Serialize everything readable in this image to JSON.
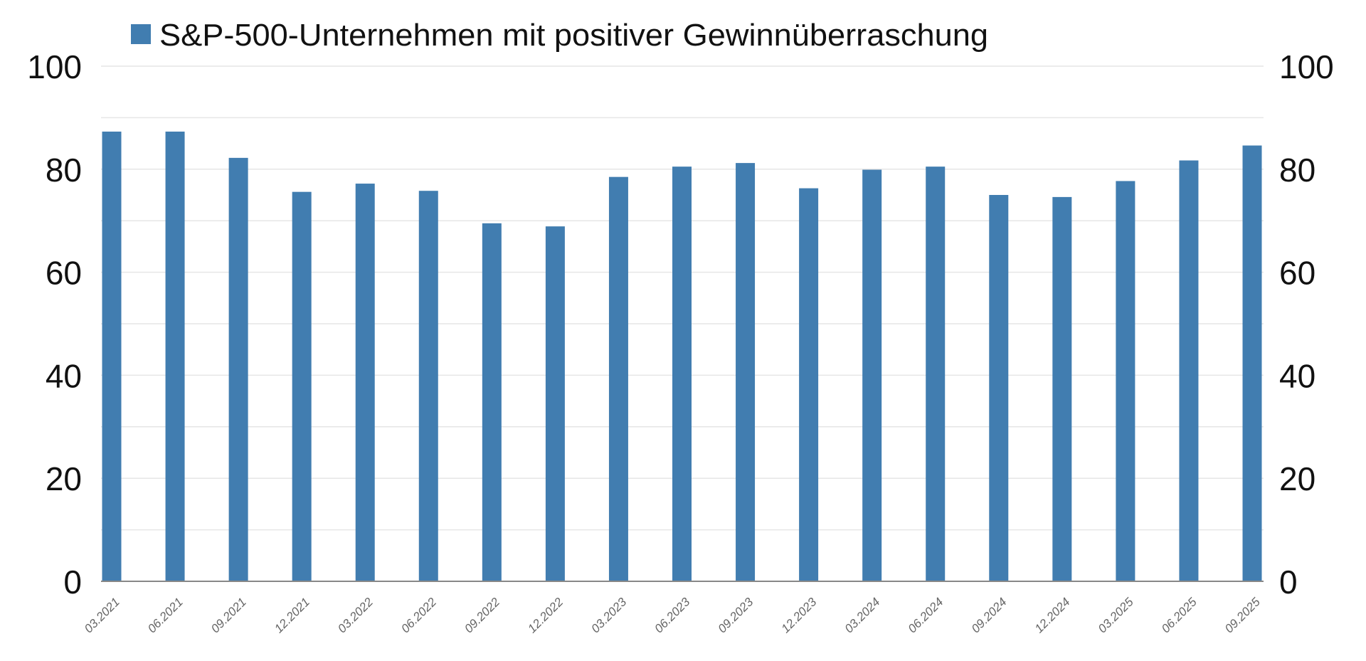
{
  "chart_data": {
    "type": "bar",
    "title": "",
    "xlabel": "",
    "ylabel": "",
    "ylim": [
      0,
      100
    ],
    "yticks": [
      0,
      20,
      40,
      60,
      80,
      100
    ],
    "secondary_yticks": [
      0,
      20,
      40,
      60,
      80,
      100
    ],
    "grid": true,
    "legend_position": "top-left",
    "categories": [
      "03.2021",
      "06.2021",
      "09.2021",
      "12.2021",
      "03.2022",
      "06.2022",
      "09.2022",
      "12.2022",
      "03.2023",
      "06.2023",
      "09.2023",
      "12.2023",
      "03.2024",
      "06.2024",
      "09.2024",
      "12.2024",
      "03.2025",
      "06.2025",
      "09.2025"
    ],
    "series": [
      {
        "name": "S&P-500-Unternehmen mit positiver Gewinnüberraschung",
        "color": "#417DB0",
        "values": [
          87.3,
          87.3,
          82.2,
          75.6,
          77.2,
          75.8,
          69.5,
          68.9,
          78.5,
          80.5,
          81.2,
          76.3,
          79.9,
          80.5,
          75.0,
          74.6,
          77.7,
          81.7,
          84.6
        ]
      }
    ]
  }
}
